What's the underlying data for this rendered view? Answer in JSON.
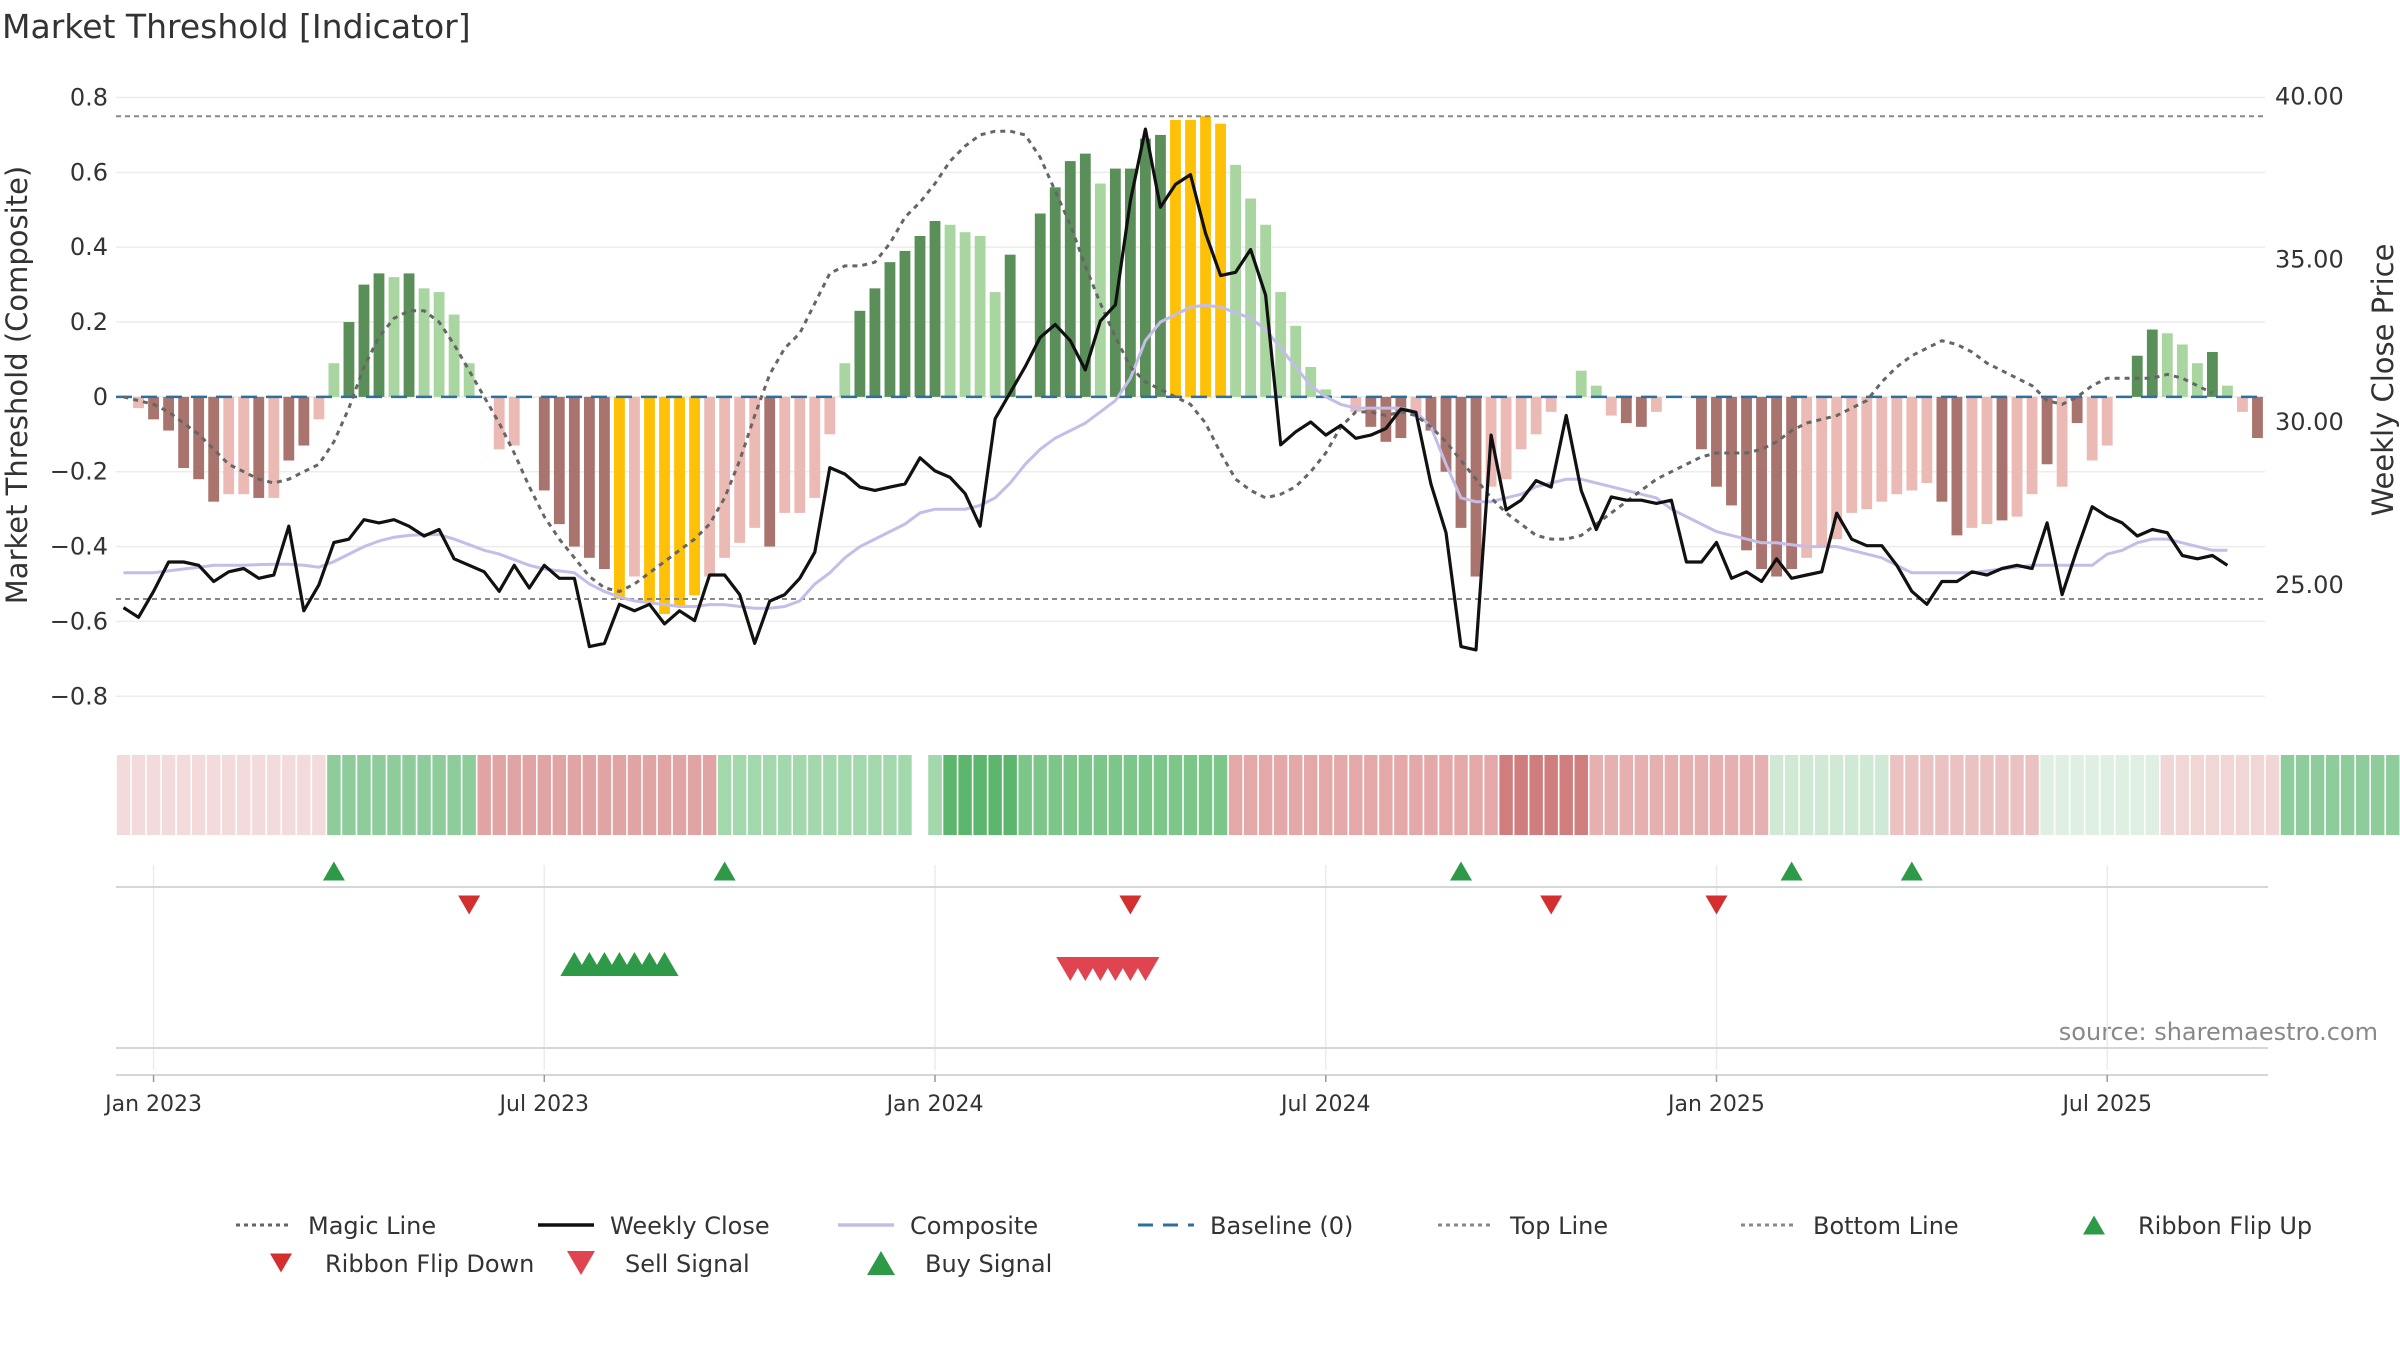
{
  "chart_data": {
    "type": "bar",
    "title": "Market Threshold [Indicator]",
    "ylabel": "Market Threshold (Composite)",
    "y2label": "Weekly Close Price",
    "source": "source: sharemaestro.com",
    "ylim": [
      -0.85,
      0.82
    ],
    "y2lim": [
      21.0,
      40.2
    ],
    "yticks": [
      0.8,
      0.6,
      0.4,
      0.2,
      0,
      -0.2,
      -0.4,
      -0.6,
      -0.8
    ],
    "ytick_labels": [
      "0.8",
      "0.6",
      "0.4",
      "0.2",
      "0",
      "−0.2",
      "−0.4",
      "−0.6",
      "−0.8"
    ],
    "y2ticks": [
      40,
      35,
      30,
      25
    ],
    "y2tick_labels": [
      "40.00",
      "35.00",
      "30.00",
      "25.00"
    ],
    "x_ticks": [
      {
        "week": 1,
        "label": "Jan 2023"
      },
      {
        "week": 27,
        "label": "Jul 2023"
      },
      {
        "week": 53,
        "label": "Jan 2024"
      },
      {
        "week": 79,
        "label": "Jul 2024"
      },
      {
        "week": 105,
        "label": "Jan 2025"
      },
      {
        "week": 131,
        "label": "Jul 2025"
      }
    ],
    "start_week": -1,
    "top_line": 0.75,
    "bottom_line": -0.54,
    "baseline": 0,
    "colors": {
      "strong_pos": "#5a8f5a",
      "weak_pos": "#a8d5a0",
      "strong_neg": "#a9736e",
      "weak_neg": "#ecbab5",
      "extreme": "#ffc107",
      "close": "#111111",
      "composite": "#c3bde8",
      "magic": "#666666",
      "baseline": "#2e6f9e",
      "band_line": "#888888",
      "signal_up": "#2e9a47",
      "signal_down": "#d32f2f"
    },
    "composite_bars": [
      0.0,
      -0.03,
      -0.06,
      -0.09,
      -0.19,
      -0.22,
      -0.28,
      -0.26,
      -0.26,
      -0.27,
      -0.27,
      -0.17,
      -0.13,
      -0.06,
      0.09,
      0.2,
      0.3,
      0.33,
      0.32,
      0.33,
      0.29,
      0.28,
      0.22,
      0.09,
      0.0,
      -0.14,
      -0.13,
      -0.0,
      -0.25,
      -0.34,
      -0.4,
      -0.43,
      -0.46,
      -0.54,
      -0.48,
      -0.55,
      -0.58,
      -0.56,
      -0.53,
      -0.48,
      -0.43,
      -0.39,
      -0.35,
      -0.4,
      -0.31,
      -0.31,
      -0.27,
      -0.1,
      0.09,
      0.23,
      0.29,
      0.36,
      0.39,
      0.43,
      0.47,
      0.46,
      0.44,
      0.43,
      0.28,
      0.38,
      0.0,
      0.49,
      0.56,
      0.63,
      0.65,
      0.57,
      0.61,
      0.61,
      0.69,
      0.7,
      0.74,
      0.74,
      0.75,
      0.73,
      0.62,
      0.53,
      0.46,
      0.28,
      0.19,
      0.08,
      0.02,
      0.0,
      -0.04,
      -0.08,
      -0.12,
      -0.11,
      -0.05,
      -0.09,
      -0.2,
      -0.35,
      -0.48,
      -0.24,
      -0.22,
      -0.14,
      -0.1,
      -0.04,
      0.0,
      0.07,
      0.03,
      -0.05,
      -0.07,
      -0.08,
      -0.04,
      0.0,
      0.0,
      -0.14,
      -0.24,
      -0.29,
      -0.41,
      -0.46,
      -0.48,
      -0.46,
      -0.43,
      -0.4,
      -0.38,
      -0.31,
      -0.3,
      -0.28,
      -0.26,
      -0.25,
      -0.23,
      -0.28,
      -0.37,
      -0.35,
      -0.34,
      -0.33,
      -0.32,
      -0.26,
      -0.18,
      -0.24,
      -0.07,
      -0.17,
      -0.13,
      0.0,
      0.11,
      0.18,
      0.17,
      0.14,
      0.09,
      0.12,
      0.03,
      -0.04,
      -0.11
    ],
    "bar_classes": [
      "weak_pos",
      "weak_neg",
      "strong_neg",
      "strong_neg",
      "strong_neg",
      "strong_neg",
      "strong_neg",
      "weak_neg",
      "weak_neg",
      "strong_neg",
      "weak_neg",
      "strong_neg",
      "strong_neg",
      "weak_neg",
      "weak_pos",
      "strong_pos",
      "strong_pos",
      "strong_pos",
      "weak_pos",
      "strong_pos",
      "weak_pos",
      "weak_pos",
      "weak_pos",
      "weak_pos",
      "weak_pos",
      "weak_neg",
      "weak_neg",
      "weak_neg",
      "strong_neg",
      "strong_neg",
      "strong_neg",
      "strong_neg",
      "strong_neg",
      "extreme",
      "weak_neg",
      "extreme",
      "extreme",
      "extreme",
      "extreme",
      "weak_neg",
      "weak_neg",
      "weak_neg",
      "weak_neg",
      "strong_neg",
      "weak_neg",
      "weak_neg",
      "weak_neg",
      "weak_neg",
      "weak_pos",
      "strong_pos",
      "strong_pos",
      "strong_pos",
      "strong_pos",
      "strong_pos",
      "strong_pos",
      "weak_pos",
      "weak_pos",
      "weak_pos",
      "weak_pos",
      "strong_pos",
      "weak_pos",
      "strong_pos",
      "strong_pos",
      "strong_pos",
      "strong_pos",
      "weak_pos",
      "strong_pos",
      "strong_pos",
      "strong_pos",
      "strong_pos",
      "extreme",
      "extreme",
      "extreme",
      "extreme",
      "weak_pos",
      "weak_pos",
      "weak_pos",
      "weak_pos",
      "weak_pos",
      "weak_pos",
      "weak_pos",
      "weak_pos",
      "weak_neg",
      "strong_neg",
      "strong_neg",
      "strong_neg",
      "weak_neg",
      "strong_neg",
      "strong_neg",
      "strong_neg",
      "strong_neg",
      "weak_neg",
      "weak_neg",
      "weak_neg",
      "weak_neg",
      "weak_neg",
      "weak_neg",
      "weak_pos",
      "weak_pos",
      "weak_neg",
      "strong_neg",
      "strong_neg",
      "weak_neg",
      "weak_neg",
      "weak_neg",
      "strong_neg",
      "strong_neg",
      "strong_neg",
      "strong_neg",
      "strong_neg",
      "strong_neg",
      "strong_neg",
      "weak_neg",
      "weak_neg",
      "weak_neg",
      "weak_neg",
      "weak_neg",
      "weak_neg",
      "weak_neg",
      "weak_neg",
      "weak_neg",
      "strong_neg",
      "strong_neg",
      "weak_neg",
      "weak_neg",
      "strong_neg",
      "weak_neg",
      "weak_neg",
      "strong_neg",
      "weak_neg",
      "strong_neg",
      "weak_neg",
      "weak_neg",
      "weak_neg",
      "strong_pos",
      "strong_pos",
      "weak_pos",
      "weak_pos",
      "weak_pos",
      "strong_pos",
      "weak_pos",
      "weak_neg",
      "strong_neg"
    ],
    "weekly_close": [
      24.3,
      24.0,
      24.8,
      25.7,
      25.7,
      25.6,
      25.1,
      25.4,
      25.5,
      25.2,
      25.3,
      26.8,
      24.2,
      25.0,
      26.3,
      26.4,
      27.0,
      26.9,
      27.0,
      26.8,
      26.5,
      26.7,
      25.8,
      25.6,
      25.4,
      24.8,
      25.6,
      24.9,
      25.6,
      25.2,
      25.2,
      23.1,
      23.2,
      24.4,
      24.2,
      24.4,
      23.8,
      24.2,
      23.9,
      25.3,
      25.3,
      24.7,
      23.2,
      24.5,
      24.7,
      25.2,
      26.0,
      28.6,
      28.4,
      28.0,
      27.9,
      28.0,
      28.1,
      28.9,
      28.5,
      28.3,
      27.8,
      26.8,
      30.1,
      30.9,
      31.7,
      32.6,
      33.0,
      32.5,
      31.6,
      33.1,
      33.6,
      36.8,
      39.0,
      36.6,
      37.3,
      37.6,
      35.8,
      34.5,
      34.6,
      35.3,
      33.9,
      29.3,
      29.7,
      30.0,
      29.6,
      29.9,
      29.5,
      29.6,
      29.8,
      30.4,
      30.3,
      28.1,
      26.6,
      23.1,
      23.0,
      29.6,
      27.3,
      27.6,
      28.2,
      28.0,
      30.2,
      27.9,
      26.7,
      27.7,
      27.6,
      27.6,
      27.5,
      27.6,
      25.7,
      25.7,
      26.3,
      25.2,
      25.4,
      25.1,
      25.8,
      25.2,
      25.3,
      25.4,
      27.2,
      26.4,
      26.2,
      26.2,
      25.6,
      24.8,
      24.4,
      25.1,
      25.1,
      25.4,
      25.3,
      25.5,
      25.6,
      25.5,
      26.9,
      24.7,
      26.1,
      27.4,
      27.1,
      26.9,
      26.5,
      26.7,
      26.6,
      25.9,
      25.8,
      25.9,
      25.6
    ],
    "composite_line": [
      -0.47,
      -0.47,
      -0.47,
      -0.465,
      -0.46,
      -0.455,
      -0.45,
      -0.45,
      -0.45,
      -0.448,
      -0.447,
      -0.447,
      -0.45,
      -0.455,
      -0.44,
      -0.42,
      -0.4,
      -0.385,
      -0.375,
      -0.37,
      -0.368,
      -0.368,
      -0.38,
      -0.395,
      -0.41,
      -0.42,
      -0.435,
      -0.45,
      -0.46,
      -0.465,
      -0.47,
      -0.5,
      -0.52,
      -0.535,
      -0.545,
      -0.55,
      -0.555,
      -0.56,
      -0.56,
      -0.555,
      -0.555,
      -0.56,
      -0.565,
      -0.565,
      -0.56,
      -0.545,
      -0.5,
      -0.47,
      -0.43,
      -0.4,
      -0.38,
      -0.36,
      -0.34,
      -0.31,
      -0.3,
      -0.3,
      -0.3,
      -0.29,
      -0.27,
      -0.23,
      -0.18,
      -0.14,
      -0.11,
      -0.09,
      -0.07,
      -0.04,
      -0.01,
      0.05,
      0.15,
      0.2,
      0.22,
      0.24,
      0.245,
      0.24,
      0.225,
      0.21,
      0.18,
      0.13,
      0.08,
      0.03,
      -0.0,
      -0.02,
      -0.03,
      -0.03,
      -0.03,
      -0.03,
      -0.04,
      -0.08,
      -0.18,
      -0.27,
      -0.28,
      -0.28,
      -0.27,
      -0.26,
      -0.24,
      -0.23,
      -0.22,
      -0.22,
      -0.23,
      -0.24,
      -0.25,
      -0.26,
      -0.27,
      -0.3,
      -0.32,
      -0.34,
      -0.36,
      -0.37,
      -0.38,
      -0.39,
      -0.39,
      -0.395,
      -0.4,
      -0.4,
      -0.4,
      -0.41,
      -0.42,
      -0.43,
      -0.45,
      -0.47,
      -0.47,
      -0.47,
      -0.47,
      -0.47,
      -0.465,
      -0.46,
      -0.455,
      -0.45,
      -0.45,
      -0.45,
      -0.45,
      -0.45,
      -0.42,
      -0.41,
      -0.39,
      -0.38,
      -0.38,
      -0.39,
      -0.4,
      -0.41,
      -0.41
    ],
    "magic_line": [
      0.0,
      -0.01,
      -0.02,
      -0.04,
      -0.07,
      -0.1,
      -0.14,
      -0.18,
      -0.2,
      -0.22,
      -0.23,
      -0.22,
      -0.2,
      -0.18,
      -0.12,
      -0.03,
      0.08,
      0.16,
      0.21,
      0.23,
      0.23,
      0.2,
      0.14,
      0.07,
      0.0,
      -0.07,
      -0.15,
      -0.24,
      -0.32,
      -0.38,
      -0.43,
      -0.48,
      -0.51,
      -0.52,
      -0.5,
      -0.47,
      -0.44,
      -0.41,
      -0.38,
      -0.34,
      -0.27,
      -0.17,
      -0.05,
      0.06,
      0.13,
      0.17,
      0.25,
      0.33,
      0.35,
      0.35,
      0.36,
      0.41,
      0.48,
      0.52,
      0.57,
      0.63,
      0.67,
      0.7,
      0.71,
      0.71,
      0.7,
      0.64,
      0.55,
      0.46,
      0.35,
      0.25,
      0.16,
      0.08,
      0.04,
      0.02,
      0.0,
      -0.02,
      -0.07,
      -0.15,
      -0.22,
      -0.25,
      -0.27,
      -0.26,
      -0.24,
      -0.2,
      -0.15,
      -0.08,
      -0.04,
      -0.04,
      -0.05,
      -0.04,
      -0.05,
      -0.08,
      -0.12,
      -0.17,
      -0.22,
      -0.27,
      -0.31,
      -0.34,
      -0.37,
      -0.38,
      -0.38,
      -0.37,
      -0.34,
      -0.31,
      -0.28,
      -0.25,
      -0.22,
      -0.2,
      -0.18,
      -0.16,
      -0.15,
      -0.15,
      -0.15,
      -0.14,
      -0.12,
      -0.09,
      -0.07,
      -0.06,
      -0.05,
      -0.03,
      -0.01,
      0.04,
      0.08,
      0.11,
      0.13,
      0.15,
      0.14,
      0.12,
      0.09,
      0.07,
      0.05,
      0.03,
      -0.01,
      -0.02,
      0.0,
      0.03,
      0.05,
      0.05,
      0.05,
      0.05,
      0.06,
      0.05,
      0.03,
      0.01
    ],
    "ribbon": [
      [
        "#f3dbdb",
        14
      ],
      [
        "#8fcc9c",
        10
      ],
      [
        "#e1a4a4",
        16
      ],
      [
        "#a3d8ad",
        15
      ],
      [
        "#5cb66d",
        5
      ],
      [
        "#7cc68a",
        14
      ],
      [
        "#e5a8a8",
        18
      ],
      [
        "#cf7d7d",
        6
      ],
      [
        "#e6b0b0",
        12
      ],
      [
        "#cfe9d4",
        8
      ],
      [
        "#ebc2c2",
        10
      ],
      [
        "#dff0e3",
        8
      ],
      [
        "#f1d6d6",
        8
      ],
      [
        "#8fcc9c",
        14
      ]
    ],
    "ribbon_gap_after": 53,
    "ribbon_flips_up": [
      14,
      40,
      89,
      111,
      119
    ],
    "ribbon_flips_down": [
      23,
      67,
      95,
      106
    ],
    "buy_signals": [
      30,
      31,
      32,
      33,
      34,
      35,
      36
    ],
    "sell_signals": [
      63,
      64,
      65,
      66,
      67,
      68
    ],
    "legend": [
      {
        "label": "Magic Line",
        "kind": "dotted",
        "color": "#666666"
      },
      {
        "label": "Weekly Close",
        "kind": "solid",
        "color": "#111111"
      },
      {
        "label": "Composite",
        "kind": "solid",
        "color": "#c3bde8"
      },
      {
        "label": "Baseline (0)",
        "kind": "dashed",
        "color": "#2e6f9e"
      },
      {
        "label": "Top Line",
        "kind": "dotted",
        "color": "#888888"
      },
      {
        "label": "Bottom Line",
        "kind": "dotted",
        "color": "#888888"
      },
      {
        "label": "Ribbon Flip Up",
        "kind": "tri-up-small",
        "color": "#2e9a47"
      },
      {
        "label": "Ribbon Flip Down",
        "kind": "tri-down-small",
        "color": "#d32f2f"
      },
      {
        "label": "Sell Signal",
        "kind": "tri-down",
        "color": "#e04450"
      },
      {
        "label": "Buy Signal",
        "kind": "tri-up",
        "color": "#2e9a47"
      }
    ]
  }
}
